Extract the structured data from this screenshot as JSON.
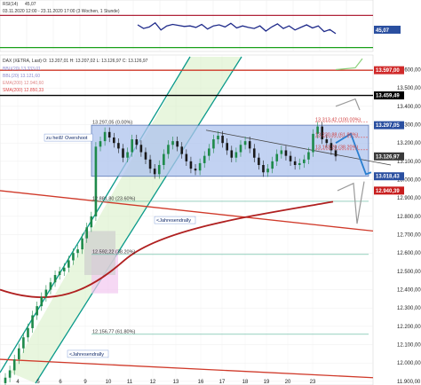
{
  "rsi_panel": {
    "legend_name": "RSI(14)",
    "legend_value": "45,07",
    "range_text": "03.11.2020 12:00 - 23.11.2020 17:00 (3 Wochen, 1 Stunde)",
    "value_badge": "45,07",
    "colors": {
      "line": "#1e2a8a",
      "upper": "#b0243a",
      "lower": "#1aa01a",
      "badge": "#2a4fa0"
    }
  },
  "main_panel": {
    "legend": "DAX (XETRA, Last)  O: 13.207,01  H: 13.207,02  L: 13.126,97  C: 13.126,97",
    "sub_legends": [
      "BBU(20) 13.333,01",
      "BBL(20) 13.121,60",
      "EMA(200) 12.940,60",
      "SMA(200) 12.850,33"
    ],
    "annotations": [
      {
        "text": "zu heiß! Overshoot",
        "value": 13220
      },
      {
        "text": "<Jahresendrally",
        "value": 12770
      },
      {
        "text": "<Jahresendrally",
        "value": 12040
      }
    ],
    "level_labels": [
      {
        "text": "13.297,05 (0.00%)",
        "value": 13297.05
      },
      {
        "text": "12.881,80 (23.60%)",
        "value": 12881.8
      },
      {
        "text": "12.592,22 (38.20%)",
        "value": 12592.22
      },
      {
        "text": "12.156,77 (61.80%)",
        "value": 12156.77
      },
      {
        "text": "13.313,42 (100.00%)",
        "value": 13313.42
      },
      {
        "text": "13.230,88 (61.80%)",
        "value": 13230.88
      },
      {
        "text": "13.163,20 (38.20%)",
        "value": 13163.2
      }
    ],
    "price_badges": [
      {
        "text": "13.597,00",
        "value": 13597,
        "color": "#d02a2a"
      },
      {
        "text": "13.459,49",
        "value": 13459.49,
        "color": "#000000"
      },
      {
        "text": "13.297,05",
        "value": 13297.05,
        "color": "#2a4fa0"
      },
      {
        "text": "13.126,97",
        "value": 13126.97,
        "color": "#3a3a3a"
      },
      {
        "text": "13.018,43",
        "value": 13018.43,
        "color": "#2a4fa0"
      },
      {
        "text": "12.940,39",
        "value": 12940.39,
        "color": "#c81e1e"
      }
    ],
    "x_ticks": [
      "4",
      "5",
      "6",
      "9",
      "10",
      "11",
      "12",
      "13",
      "16",
      "17",
      "18",
      "19",
      "20",
      "23"
    ],
    "colors": {
      "candle_up": "#1e8a4a",
      "candle_down": "#1a1a1a",
      "channel": "#0a9a8a",
      "channel_fill": "#d8f0c8",
      "box_fill": "#aec3ee",
      "ema": "#b02020",
      "red_lines": "#d03a2a",
      "arrow": "#2a7fd0"
    }
  },
  "chart_data": [
    {
      "type": "line",
      "ylim": [
        0,
        100
      ],
      "levels": [
        70,
        30
      ],
      "series": [
        {
          "values": [
            62,
            55,
            58,
            66,
            52,
            60,
            63,
            61,
            59,
            60,
            57,
            63,
            54,
            60,
            62,
            58,
            65,
            56,
            60,
            57,
            55,
            60,
            50,
            58,
            64,
            55,
            60,
            52,
            57,
            62,
            56,
            60,
            49,
            53,
            45
          ]
        }
      ]
    },
    {
      "type": "candlestick",
      "x": [
        "4",
        "5",
        "6",
        "9",
        "10",
        "11",
        "12",
        "13",
        "16",
        "17",
        "18",
        "19",
        "20",
        "23"
      ],
      "ylim": [
        11880,
        13680
      ],
      "y_ticks": [
        11900,
        12000,
        12100,
        12200,
        12300,
        12400,
        12500,
        12600,
        12700,
        12800,
        12900,
        13000,
        13100,
        13200,
        13300,
        13400,
        13500,
        13600
      ],
      "horizontal_levels": [
        13597,
        13459.49,
        13297.05,
        13126.97,
        13018.43,
        12881.8,
        12592.22,
        12156.77
      ],
      "closes": [
        11920,
        11960,
        12020,
        12080,
        12140,
        12190,
        12260,
        12310,
        12360,
        12400,
        12440,
        12480,
        12500,
        12520,
        12560,
        12600,
        12620,
        12680,
        12740,
        12800,
        13180,
        13210,
        13260,
        13230,
        13200,
        13170,
        13120,
        13150,
        13220,
        13190,
        13150,
        13110,
        13060,
        13030,
        13080,
        13140,
        13190,
        13210,
        13180,
        13140,
        13100,
        13060,
        13050,
        13090,
        13130,
        13170,
        13220,
        13240,
        13200,
        13160,
        13120,
        13150,
        13190,
        13210,
        13170,
        13120,
        13080,
        13040,
        13060,
        13100,
        13140,
        13160,
        13130,
        13100,
        13080,
        13090,
        13110,
        13150,
        13250,
        13290,
        13220,
        13200,
        13160,
        13127
      ]
    }
  ]
}
